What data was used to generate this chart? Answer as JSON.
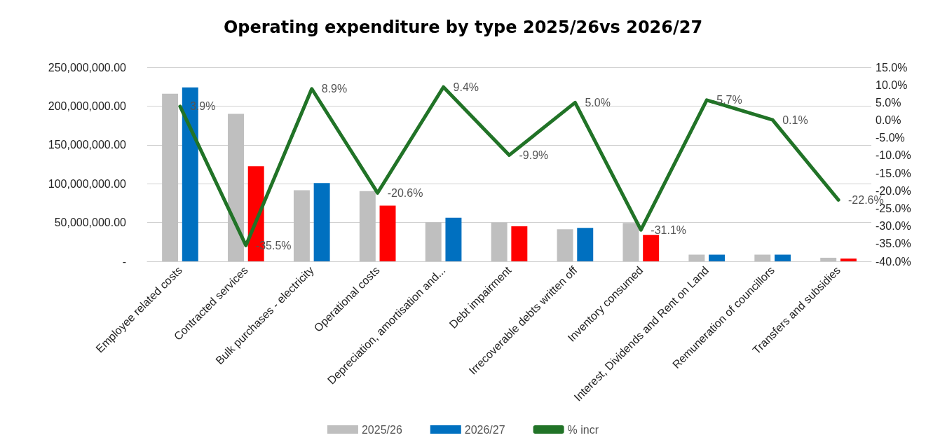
{
  "chart_data": {
    "type": "bar",
    "title": "Operating expenditure by type 2025/26vs 2026/27",
    "categories": [
      "Employee related costs",
      "Contracted services",
      "Bulk purchases - electricity",
      "Operational costs",
      "Depreciation, amortisation and...",
      "Debt impairment",
      "Irrecoverable debts written off",
      "Inventory consumed",
      "Interest, Dividends and Rent on Land",
      "Remuneration of councillors",
      "Transfers and subsidies"
    ],
    "series": [
      {
        "name": "2025/26",
        "color": "#bfbfbf",
        "values": [
          216000000,
          190000000,
          91600000,
          90500000,
          50400000,
          50200000,
          41200000,
          49500000,
          8600000,
          8600000,
          4600000
        ]
      },
      {
        "name": "2026/27",
        "color": "#0070c0",
        "colors": [
          "#0070c0",
          "#ff0000",
          "#0070c0",
          "#ff0000",
          "#0070c0",
          "#ff0000",
          "#0070c0",
          "#ff0000",
          "#0070c0",
          "#0070c0",
          "#ff0000"
        ],
        "values": [
          224000000,
          122500000,
          100800000,
          71800000,
          56100000,
          45200000,
          43200000,
          34100000,
          8600000,
          8600000,
          3600000
        ]
      },
      {
        "name": "% incr",
        "type": "line",
        "axis": "y2",
        "color": "#217327",
        "values": [
          3.9,
          -35.5,
          8.9,
          -20.6,
          9.4,
          -9.9,
          5.0,
          -31.1,
          5.7,
          0.1,
          -22.6
        ],
        "value_labels": [
          "3.9%",
          "-35.5%",
          "8.9%",
          "-20.6%",
          "9.4%",
          "-9.9%",
          "5.0%",
          "-31.1%",
          "5.7%",
          "0.1%",
          "-22.6%"
        ]
      }
    ],
    "ylim": [
      0,
      250000000
    ],
    "yticks": [
      {
        "value": 0,
        "label": "-"
      },
      {
        "value": 50000000,
        "label": "50,000,000.00"
      },
      {
        "value": 100000000,
        "label": "100,000,000.00"
      },
      {
        "value": 150000000,
        "label": "150,000,000.00"
      },
      {
        "value": 200000000,
        "label": "200,000,000.00"
      },
      {
        "value": 250000000,
        "label": "250,000,000.00"
      }
    ],
    "y2lim": [
      -40,
      15
    ],
    "y2ticks": [
      {
        "value": -40,
        "label": "-40.0%"
      },
      {
        "value": -35,
        "label": "-35.0%"
      },
      {
        "value": -30,
        "label": "-30.0%"
      },
      {
        "value": -25,
        "label": "-25.0%"
      },
      {
        "value": -20,
        "label": "-20.0%"
      },
      {
        "value": -15,
        "label": "-15.0%"
      },
      {
        "value": -10,
        "label": "-10.0%"
      },
      {
        "value": -5,
        "label": "-5.0%"
      },
      {
        "value": 0,
        "label": "0.0%"
      },
      {
        "value": 5,
        "label": "5.0%"
      },
      {
        "value": 10,
        "label": "10.0%"
      },
      {
        "value": 15,
        "label": "15.0%"
      }
    ],
    "grid": "y",
    "legend": "bottom",
    "marker": "none",
    "line_style": "solid"
  }
}
